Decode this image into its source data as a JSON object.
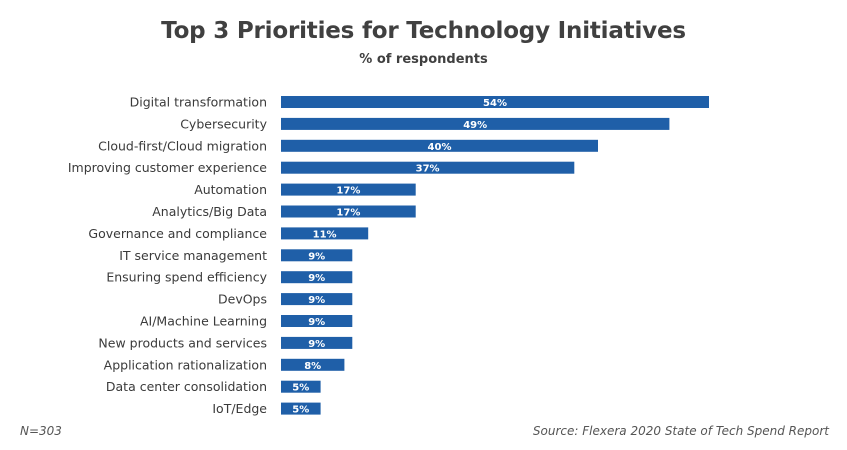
{
  "chart_data": {
    "type": "bar",
    "orientation": "horizontal",
    "title": "Top 3 Priorities for Technology Initiatives",
    "subtitle": "% of respondents",
    "categories": [
      "Digital transformation",
      "Cybersecurity",
      "Cloud-first/Cloud migration",
      "Improving customer experience",
      "Automation",
      "Analytics/Big Data",
      "Governance and compliance",
      "IT service management",
      "Ensuring spend efficiency",
      "DevOps",
      "AI/Machine Learning",
      "New products and services",
      "Application rationalization",
      "Data center consolidation",
      "IoT/Edge"
    ],
    "values": [
      54,
      49,
      40,
      37,
      17,
      17,
      11,
      9,
      9,
      9,
      9,
      9,
      8,
      5,
      5
    ],
    "value_labels": [
      "54%",
      "49%",
      "40%",
      "37%",
      "17%",
      "17%",
      "11%",
      "9%",
      "9%",
      "9%",
      "9%",
      "9%",
      "8%",
      "5%",
      "5%"
    ],
    "xlim": [
      0,
      54
    ],
    "grid": false,
    "bar_color": "#1f5fa8",
    "label_color": "#ffffff"
  },
  "footer": {
    "note": "N=303",
    "source": "Source: Flexera 2020 State of Tech Spend Report"
  }
}
